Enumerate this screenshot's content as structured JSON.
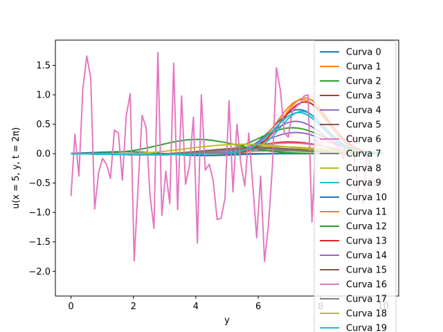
{
  "chart_data": {
    "type": "line",
    "title": "",
    "xlabel": "y",
    "ylabel": "u(x = 5, y, t = 2π)",
    "xlim": [
      -0.5,
      10.5
    ],
    "ylim": [
      -2.42,
      1.93
    ],
    "xticks": [
      0,
      2,
      4,
      6,
      8,
      10
    ],
    "yticks": [
      -2.0,
      -1.5,
      -1.0,
      -0.5,
      0.0,
      0.5,
      1.0,
      1.5
    ],
    "xtick_labels": [
      "0",
      "2",
      "4",
      "6",
      "8",
      "10"
    ],
    "ytick_labels": [
      "−2.0",
      "−1.5",
      "−1.0",
      "−0.5",
      "0.0",
      "0.5",
      "1.0",
      "1.5"
    ],
    "grid": false,
    "legend_position": "top-right",
    "colors": [
      "#1f77b4",
      "#ff7f0e",
      "#2ca02c",
      "#d62728",
      "#9467bd",
      "#8c564b",
      "#e377c2",
      "#7f7f7f",
      "#bcbd22",
      "#17becf"
    ],
    "series": [
      {
        "name": "Curva 0",
        "shape": "bump",
        "params": {
          "amp": 0.75,
          "center": 7.3,
          "width": 1.15,
          "offset": 0.0
        }
      },
      {
        "name": "Curva 1",
        "shape": "bump",
        "params": {
          "amp": 0.92,
          "center": 7.4,
          "width": 1.1,
          "offset": 0.0
        }
      },
      {
        "name": "Curva 2",
        "shape": "bump",
        "params": {
          "amp": 0.44,
          "center": 7.1,
          "width": 1.5,
          "offset": 0.0
        }
      },
      {
        "name": "Curva 3",
        "shape": "bump",
        "params": {
          "amp": 0.2,
          "center": 7.0,
          "width": 1.6,
          "offset": 0.0
        }
      },
      {
        "name": "Curva 4",
        "shape": "bump",
        "params": {
          "amp": 0.36,
          "center": 7.2,
          "width": 1.4,
          "offset": 0.0
        }
      },
      {
        "name": "Curva 5",
        "shape": "bump",
        "params": {
          "amp": 0.0,
          "center": 5.0,
          "width": 2.0,
          "offset": 0.0
        }
      },
      {
        "name": "Curva 6",
        "shape": "bump",
        "params": {
          "amp": 0.18,
          "center": 7.0,
          "width": 1.8,
          "offset": 0.0
        }
      },
      {
        "name": "Curva 7",
        "shape": "bump",
        "params": {
          "amp": 0.05,
          "center": 6.5,
          "width": 2.0,
          "offset": 0.0
        }
      },
      {
        "name": "Curva 8",
        "shape": "bump",
        "params": {
          "amp": 0.12,
          "center": 6.5,
          "width": 2.5,
          "offset": 0.0
        }
      },
      {
        "name": "Curva 9",
        "shape": "bump",
        "params": {
          "amp": 0.72,
          "center": 7.4,
          "width": 1.0,
          "offset": 0.0
        }
      },
      {
        "name": "Curva 10",
        "shape": "wave",
        "params": {
          "amp": 0.05,
          "center": 3.0,
          "width": 1.2,
          "offset": 0.0
        }
      },
      {
        "name": "Curva 11",
        "shape": "bump",
        "params": {
          "amp": 0.95,
          "center": 7.5,
          "width": 1.05,
          "offset": 0.0
        }
      },
      {
        "name": "Curva 12",
        "shape": "bump",
        "params": {
          "amp": 0.25,
          "center": 4.0,
          "width": 1.8,
          "offset": 0.0
        }
      },
      {
        "name": "Curva 13",
        "shape": "bump",
        "params": {
          "amp": 0.88,
          "center": 7.5,
          "width": 1.1,
          "offset": 0.0
        }
      },
      {
        "name": "Curva 14",
        "shape": "bump",
        "params": {
          "amp": 0.55,
          "center": 7.2,
          "width": 1.2,
          "offset": 0.0
        }
      },
      {
        "name": "Curva 15",
        "shape": "bump",
        "params": {
          "amp": 0.1,
          "center": 6.0,
          "width": 2.2,
          "offset": 0.0
        }
      },
      {
        "name": "Curva 16",
        "shape": "noisy",
        "params": {
          "amp": 0.0,
          "center": 0.0,
          "width": 1.0,
          "offset": 0.05
        }
      },
      {
        "name": "Curva 17",
        "shape": "bump",
        "params": {
          "amp": 0.08,
          "center": 6.0,
          "width": 2.0,
          "offset": 0.0
        }
      },
      {
        "name": "Curva 18",
        "shape": "bump",
        "params": {
          "amp": 0.16,
          "center": 5.5,
          "width": 2.5,
          "offset": 0.0
        }
      },
      {
        "name": "Curva 19",
        "shape": "bump",
        "params": {
          "amp": 0.7,
          "center": 7.3,
          "width": 1.1,
          "offset": 0.0
        }
      }
    ],
    "noisy_values": [
      -0.72,
      0.33,
      -0.38,
      1.1,
      1.66,
      1.28,
      -0.94,
      -0.32,
      -0.08,
      -0.18,
      -0.42,
      0.4,
      0.35,
      -0.45,
      0.65,
      1.02,
      -1.82,
      -0.55,
      0.65,
      0.45,
      -0.7,
      -1.27,
      1.72,
      -1.05,
      -0.3,
      -0.85,
      1.54,
      -0.95,
      0.98,
      -0.52,
      -0.2,
      0.62,
      -1.52,
      1.0,
      -0.28,
      -0.18,
      -0.46,
      -1.12,
      -1.1,
      -0.75,
      0.9,
      -0.65,
      0.5,
      -0.18,
      -0.55,
      0.35,
      -0.52,
      -1.43,
      -0.38,
      -1.83,
      -1.2,
      -0.2,
      1.46,
      1.08,
      0.35,
      0.28,
      0.72,
      0.8,
      0.85,
      0.98,
      1.0,
      -1.16,
      0.28,
      0.12,
      0.25,
      0.2,
      0.18,
      0.15,
      0.08,
      -0.1,
      0.32,
      0.35,
      -0.25,
      -0.68,
      -0.85,
      0.02,
      -0.3,
      -0.56,
      -0.4,
      -0.5
    ]
  }
}
